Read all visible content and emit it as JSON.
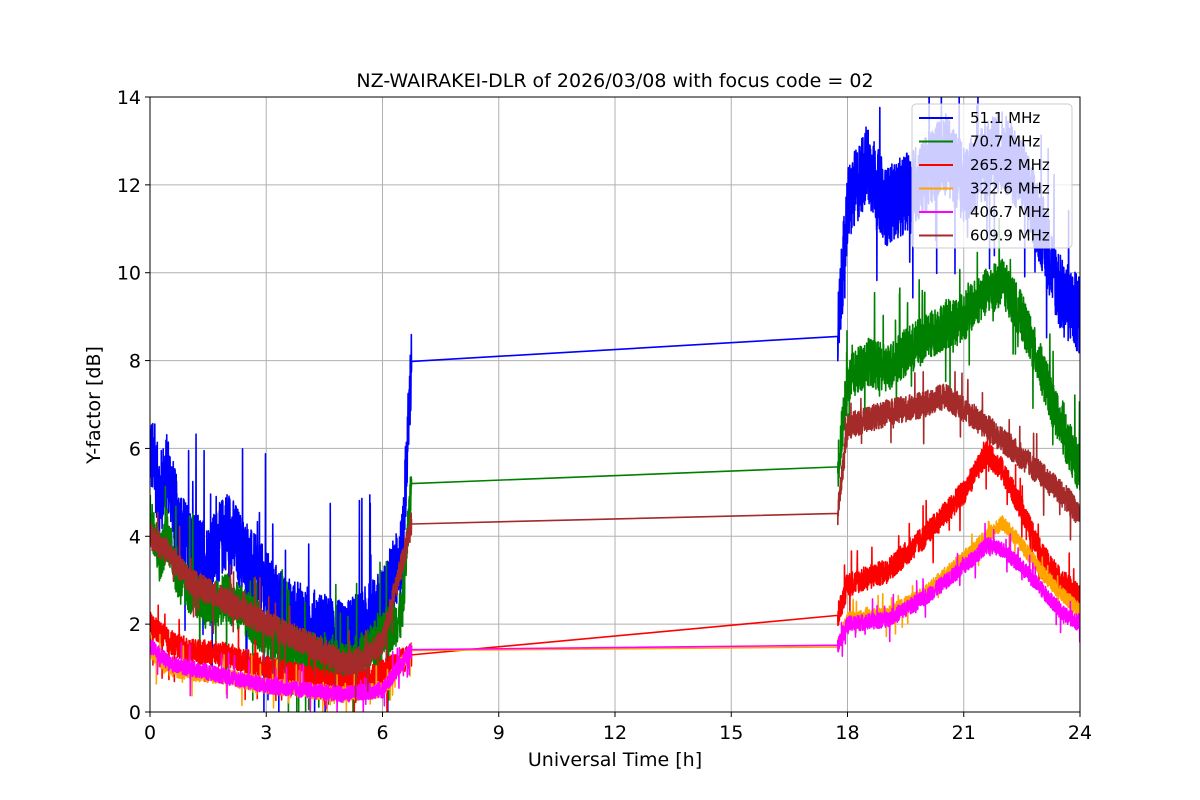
{
  "chart_data": {
    "type": "line",
    "title": "NZ-WAIRAKEI-DLR of 2026/03/08 with focus code = 02",
    "xlabel": "Universal Time [h]",
    "ylabel": "Y-factor [dB]",
    "xlim": [
      0,
      24
    ],
    "ylim": [
      0,
      14
    ],
    "xticks": [
      0,
      3,
      6,
      9,
      12,
      15,
      18,
      21,
      24
    ],
    "yticks": [
      0,
      2,
      4,
      6,
      8,
      10,
      12,
      14
    ],
    "grid": true,
    "legend_position": "top-right",
    "gap": {
      "start": 6.75,
      "end": 17.75
    },
    "series": [
      {
        "name": "51.1 MHz",
        "label": " 51.1 MHz",
        "color": "#0000ff",
        "x": [
          0,
          0.25,
          0.45,
          0.75,
          1.0,
          1.5,
          2.0,
          2.5,
          3.0,
          3.5,
          4.0,
          4.5,
          5.0,
          5.5,
          6.0,
          6.5,
          6.75,
          17.75,
          18.0,
          18.5,
          19.0,
          19.5,
          20.0,
          20.5,
          21.0,
          21.5,
          22.0,
          22.5,
          23.0,
          23.5,
          24.0
        ],
        "y": [
          6.0,
          5.0,
          5.5,
          4.2,
          3.8,
          3.4,
          4.2,
          3.4,
          2.8,
          2.2,
          2.0,
          1.8,
          1.6,
          1.9,
          2.4,
          3.6,
          7.98,
          8.55,
          11.5,
          12.5,
          11.5,
          11.8,
          12.2,
          12.8,
          12.0,
          12.5,
          12.8,
          12.2,
          11.0,
          9.5,
          9.0
        ],
        "noise": 0.9
      },
      {
        "name": "70.7 MHz",
        "label": " 70.7 MHz",
        "color": "#008000",
        "x": [
          0,
          0.25,
          0.45,
          0.75,
          1.0,
          1.5,
          2.0,
          2.5,
          3.0,
          3.5,
          4.0,
          4.5,
          5.0,
          5.5,
          6.0,
          6.5,
          6.75,
          17.75,
          18.0,
          18.5,
          19.0,
          19.5,
          20.0,
          20.5,
          21.0,
          21.5,
          22.0,
          22.5,
          23.0,
          23.5,
          24.0
        ],
        "y": [
          4.5,
          3.5,
          4.0,
          3.0,
          2.8,
          2.4,
          2.6,
          2.2,
          1.8,
          1.5,
          1.3,
          1.2,
          1.0,
          1.3,
          1.7,
          2.2,
          5.2,
          5.58,
          7.5,
          8.0,
          7.8,
          8.2,
          8.5,
          8.8,
          9.0,
          9.5,
          9.8,
          9.0,
          7.8,
          6.5,
          5.5
        ],
        "noise": 0.55
      },
      {
        "name": "265.2 MHz",
        "label": "265.2 MHz",
        "color": "#ff0000",
        "x": [
          0,
          0.5,
          1.0,
          2.0,
          3.0,
          4.0,
          5.0,
          5.5,
          6.0,
          6.75,
          17.75,
          18.0,
          19.0,
          20.0,
          21.0,
          21.6,
          22.0,
          22.5,
          23.0,
          23.5,
          24.0
        ],
        "y": [
          2.0,
          1.6,
          1.4,
          1.3,
          1.0,
          0.8,
          0.6,
          0.7,
          0.9,
          1.3,
          2.2,
          2.9,
          3.2,
          4.0,
          5.0,
          5.9,
          5.5,
          4.6,
          3.6,
          3.0,
          2.6
        ],
        "noise": 0.28
      },
      {
        "name": "322.6 MHz",
        "label": "322.6 MHz",
        "color": "#ffa500",
        "x": [
          0,
          0.5,
          1.0,
          2.0,
          3.0,
          4.0,
          5.0,
          6.0,
          6.75,
          17.75,
          18.0,
          19.0,
          20.0,
          21.0,
          21.6,
          22.0,
          22.5,
          23.0,
          23.5,
          24.0
        ],
        "y": [
          1.4,
          1.0,
          0.9,
          0.8,
          0.6,
          0.5,
          0.4,
          0.5,
          1.4,
          1.48,
          2.1,
          2.2,
          2.7,
          3.5,
          4.0,
          4.3,
          3.8,
          3.2,
          2.7,
          2.3
        ],
        "noise": 0.18
      },
      {
        "name": "406.7 MHz",
        "label": "406.7 MHz",
        "color": "#ff00ff",
        "x": [
          0,
          0.5,
          1.0,
          2.0,
          3.0,
          4.0,
          5.0,
          6.0,
          6.75,
          17.75,
          18.0,
          19.0,
          20.0,
          21.0,
          21.6,
          22.0,
          22.5,
          23.0,
          23.5,
          24.0
        ],
        "y": [
          1.5,
          1.1,
          1.0,
          0.8,
          0.6,
          0.5,
          0.4,
          0.5,
          1.42,
          1.52,
          2.0,
          2.1,
          2.6,
          3.3,
          3.8,
          3.7,
          3.3,
          2.8,
          2.3,
          2.0
        ],
        "noise": 0.18
      },
      {
        "name": "609.9 MHz",
        "label": "609.9 MHz",
        "color": "#a52a2a",
        "x": [
          0,
          0.5,
          1.0,
          2.0,
          3.0,
          4.0,
          5.0,
          5.5,
          6.0,
          6.75,
          17.75,
          18.0,
          19.0,
          20.0,
          20.5,
          21.0,
          22.0,
          22.5,
          23.0,
          23.5,
          24.0
        ],
        "y": [
          4.0,
          3.6,
          3.0,
          2.5,
          2.0,
          1.6,
          1.1,
          1.2,
          1.6,
          4.28,
          4.52,
          6.5,
          6.8,
          7.0,
          7.2,
          6.9,
          6.2,
          5.8,
          5.4,
          5.0,
          4.5
        ],
        "noise": 0.3
      }
    ]
  }
}
